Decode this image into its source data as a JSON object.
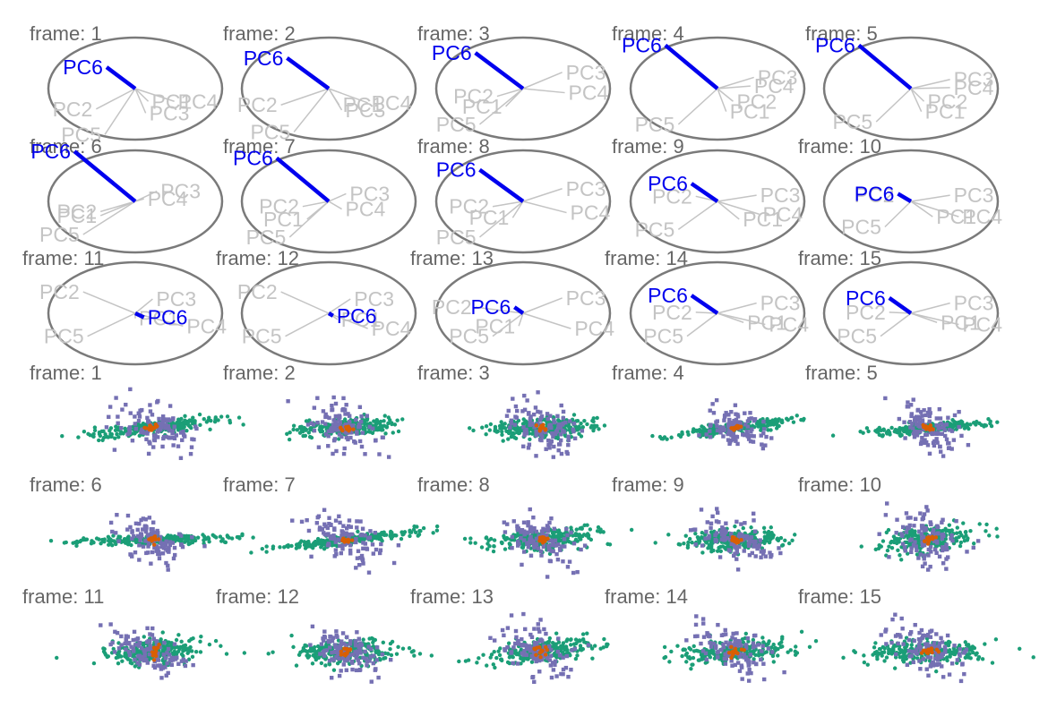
{
  "colors": {
    "frame_label": "#666666",
    "circle": "#7a7a7a",
    "axis_inactive": "#c4c4c4",
    "axis_active": "#0000ee",
    "group_a": "#1b9e77",
    "group_b": "#7570b3",
    "group_c": "#d95f02"
  },
  "chart_data": [
    {
      "type": "axes-tour",
      "title": "",
      "axis_names": [
        "PC1",
        "PC2",
        "PC3",
        "PC4",
        "PC5",
        "PC6"
      ],
      "active_axis": "PC6",
      "frames": [
        {
          "label": "frame: 1",
          "axes": [
            [
              0.15,
              -0.25
            ],
            [
              -0.45,
              -0.4
            ],
            [
              0.12,
              -0.48
            ],
            [
              0.45,
              -0.25
            ],
            [
              -0.35,
              -0.9
            ],
            [
              -0.33,
              0.42
            ]
          ]
        },
        {
          "label": "frame: 2",
          "axes": [
            [
              0.12,
              -0.32
            ],
            [
              -0.55,
              -0.32
            ],
            [
              0.15,
              -0.42
            ],
            [
              0.45,
              -0.28
            ],
            [
              -0.4,
              -0.85
            ],
            [
              -0.48,
              0.6
            ]
          ]
        },
        {
          "label": "frame: 3",
          "axes": [
            [
              -0.2,
              -0.35
            ],
            [
              -0.3,
              -0.15
            ],
            [
              0.45,
              0.32
            ],
            [
              0.48,
              -0.08
            ],
            [
              -0.5,
              -0.7
            ],
            [
              -0.55,
              0.7
            ]
          ]
        },
        {
          "label": "frame: 4",
          "axes": [
            [
              0.1,
              -0.45
            ],
            [
              0.18,
              -0.25
            ],
            [
              0.42,
              0.22
            ],
            [
              0.38,
              0.05
            ],
            [
              -0.45,
              -0.7
            ],
            [
              -0.6,
              0.85
            ]
          ]
        },
        {
          "label": "frame: 5",
          "axes": [
            [
              0.12,
              -0.45
            ],
            [
              0.15,
              -0.25
            ],
            [
              0.45,
              0.18
            ],
            [
              0.45,
              0.02
            ],
            [
              -0.4,
              -0.65
            ],
            [
              -0.6,
              0.85
            ]
          ]
        },
        {
          "label": "frame: 6",
          "axes": [
            [
              -0.4,
              -0.28
            ],
            [
              -0.4,
              -0.2
            ],
            [
              0.25,
              0.2
            ],
            [
              0.1,
              0.05
            ],
            [
              -0.6,
              -0.65
            ],
            [
              -0.7,
              0.98
            ]
          ]
        },
        {
          "label": "frame: 7",
          "axes": [
            [
              -0.25,
              -0.35
            ],
            [
              -0.3,
              -0.1
            ],
            [
              0.2,
              0.15
            ],
            [
              0.15,
              -0.15
            ],
            [
              -0.45,
              -0.7
            ],
            [
              -0.6,
              0.85
            ]
          ]
        },
        {
          "label": "frame: 8",
          "axes": [
            [
              -0.12,
              -0.32
            ],
            [
              -0.35,
              -0.1
            ],
            [
              0.45,
              0.25
            ],
            [
              0.5,
              -0.22
            ],
            [
              -0.5,
              -0.7
            ],
            [
              -0.5,
              0.62
            ]
          ]
        },
        {
          "label": "frame: 9",
          "axes": [
            [
              0.25,
              -0.35
            ],
            [
              -0.25,
              0.1
            ],
            [
              0.45,
              0.12
            ],
            [
              0.48,
              -0.25
            ],
            [
              -0.45,
              -0.55
            ],
            [
              -0.3,
              0.35
            ]
          ]
        },
        {
          "label": "frame: 10",
          "axes": [
            [
              0.25,
              -0.3
            ],
            [
              -0.15,
              0.12
            ],
            [
              0.45,
              0.12
            ],
            [
              0.55,
              -0.3
            ],
            [
              -0.3,
              -0.5
            ],
            [
              -0.15,
              0.15
            ]
          ]
        },
        {
          "label": "frame: 11",
          "axes": [
            [
              0.0,
              -0.1
            ],
            [
              -0.6,
              0.42
            ],
            [
              0.2,
              0.28
            ],
            [
              0.55,
              -0.25
            ],
            [
              -0.55,
              -0.45
            ],
            [
              0.1,
              -0.08
            ]
          ]
        },
        {
          "label": "frame: 12",
          "axes": [
            [
              0.1,
              -0.12
            ],
            [
              -0.55,
              0.42
            ],
            [
              0.25,
              0.28
            ],
            [
              0.45,
              -0.3
            ],
            [
              -0.5,
              -0.45
            ],
            [
              0.05,
              -0.05
            ]
          ]
        },
        {
          "label": "frame: 13",
          "axes": [
            [
              -0.05,
              -0.25
            ],
            [
              -0.55,
              0.12
            ],
            [
              0.45,
              0.3
            ],
            [
              0.55,
              -0.3
            ],
            [
              -0.35,
              -0.45
            ],
            [
              -0.1,
              0.12
            ]
          ]
        },
        {
          "label": "frame: 14",
          "axes": [
            [
              0.3,
              -0.18
            ],
            [
              -0.25,
              0.02
            ],
            [
              0.45,
              0.2
            ],
            [
              0.55,
              -0.22
            ],
            [
              -0.35,
              -0.45
            ],
            [
              -0.3,
              0.35
            ]
          ]
        },
        {
          "label": "frame: 15",
          "axes": [
            [
              0.3,
              -0.18
            ],
            [
              -0.25,
              0.02
            ],
            [
              0.45,
              0.2
            ],
            [
              0.55,
              -0.22
            ],
            [
              -0.35,
              -0.45
            ],
            [
              -0.25,
              0.3
            ]
          ]
        }
      ]
    },
    {
      "type": "scatter",
      "title": "",
      "series": [
        {
          "color": "group_a",
          "spread": [
            [
              0.45,
              0.08
            ],
            [
              0.35,
              0.1
            ],
            [
              0.38,
              0.12
            ],
            [
              0.4,
              0.06
            ],
            [
              0.38,
              0.06
            ],
            [
              0.55,
              0.05
            ],
            [
              0.5,
              0.06
            ],
            [
              0.4,
              0.12
            ],
            [
              0.35,
              0.14
            ],
            [
              0.35,
              0.16
            ],
            [
              0.35,
              0.15
            ],
            [
              0.35,
              0.15
            ],
            [
              0.4,
              0.14
            ],
            [
              0.4,
              0.14
            ],
            [
              0.4,
              0.14
            ]
          ]
        },
        {
          "color": "group_b",
          "spread": [
            [
              0.15,
              0.5
            ],
            [
              0.15,
              0.5
            ],
            [
              0.15,
              0.45
            ],
            [
              0.12,
              0.4
            ],
            [
              0.12,
              0.4
            ],
            [
              0.15,
              0.45
            ],
            [
              0.15,
              0.5
            ],
            [
              0.15,
              0.5
            ],
            [
              0.15,
              0.5
            ],
            [
              0.15,
              0.5
            ],
            [
              0.12,
              0.45
            ],
            [
              0.12,
              0.45
            ],
            [
              0.15,
              0.5
            ],
            [
              0.15,
              0.5
            ],
            [
              0.15,
              0.5
            ]
          ]
        },
        {
          "color": "group_c",
          "spread": [
            [
              0.04,
              0.04
            ],
            [
              0.04,
              0.04
            ],
            [
              0.04,
              0.04
            ],
            [
              0.04,
              0.04
            ],
            [
              0.04,
              0.04
            ],
            [
              0.04,
              0.04
            ],
            [
              0.04,
              0.04
            ],
            [
              0.04,
              0.04
            ],
            [
              0.04,
              0.04
            ],
            [
              0.04,
              0.04
            ],
            [
              0.05,
              0.1
            ],
            [
              0.05,
              0.1
            ],
            [
              0.05,
              0.08
            ],
            [
              0.05,
              0.06
            ],
            [
              0.05,
              0.06
            ]
          ]
        }
      ],
      "frames": [
        {
          "label": "frame: 1"
        },
        {
          "label": "frame: 2"
        },
        {
          "label": "frame: 3"
        },
        {
          "label": "frame: 4"
        },
        {
          "label": "frame: 5"
        },
        {
          "label": "frame: 6"
        },
        {
          "label": "frame: 7"
        },
        {
          "label": "frame: 8"
        },
        {
          "label": "frame: 9"
        },
        {
          "label": "frame: 10"
        },
        {
          "label": "frame: 11"
        },
        {
          "label": "frame: 12"
        },
        {
          "label": "frame: 13"
        },
        {
          "label": "frame: 14"
        },
        {
          "label": "frame: 15"
        }
      ]
    }
  ]
}
